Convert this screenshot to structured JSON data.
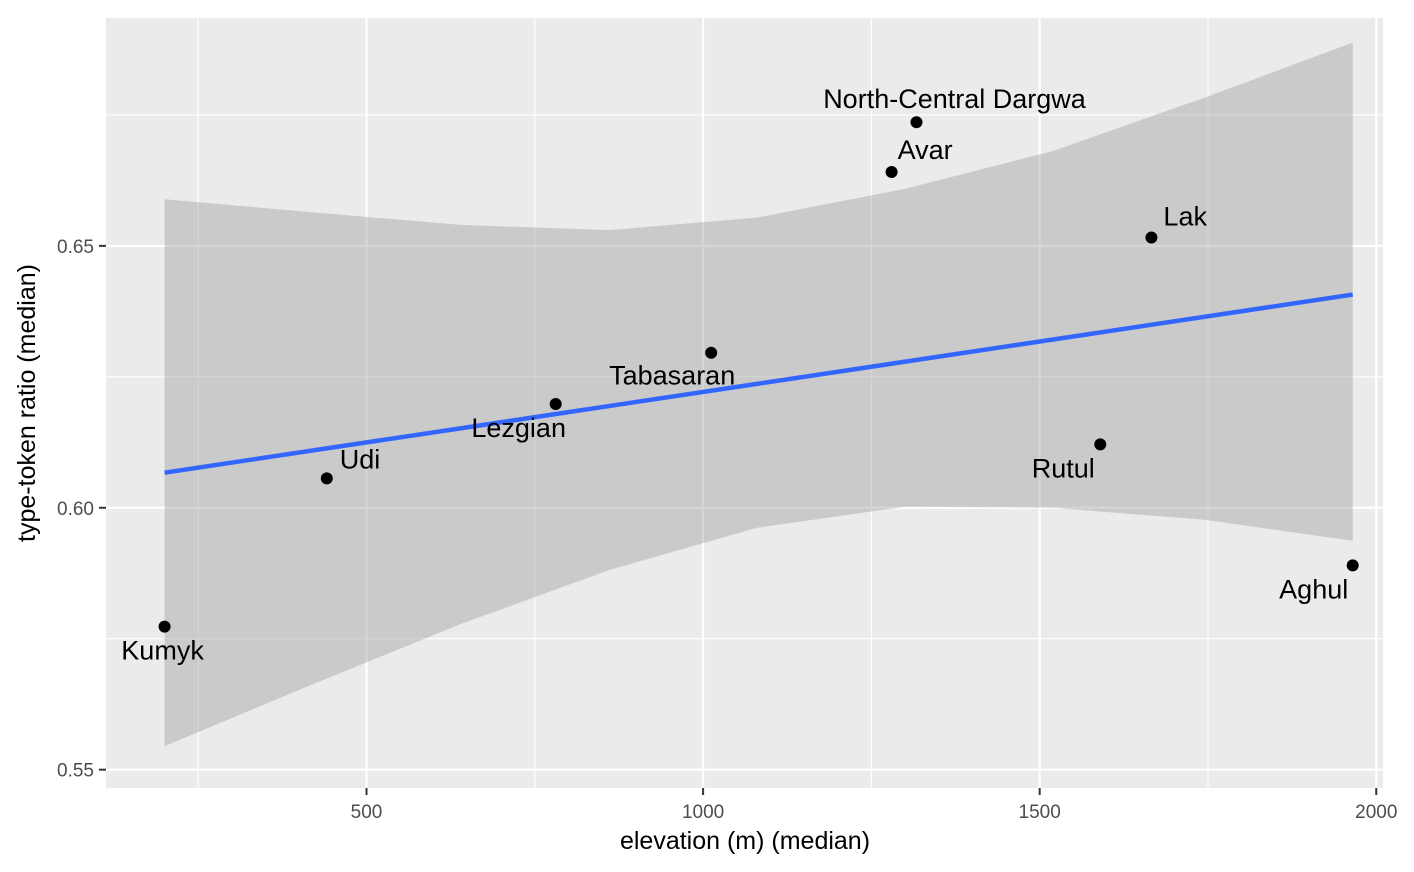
{
  "chart_data": {
    "type": "scatter",
    "title": "",
    "xlabel": "elevation (m) (median)",
    "ylabel": "type-token ratio (median)",
    "xlim": [
      113,
      2010
    ],
    "ylim": [
      0.5465,
      0.6935
    ],
    "x_ticks": [
      500,
      1000,
      1500,
      2000
    ],
    "x_tick_labels": [
      "500",
      "1000",
      "1500",
      "2000"
    ],
    "x_minor_ticks": [
      250,
      750,
      1250,
      1750
    ],
    "y_ticks": [
      0.55,
      0.6,
      0.65
    ],
    "y_tick_labels": [
      "0.55",
      "0.60",
      "0.65"
    ],
    "y_minor_ticks": [
      0.575,
      0.625,
      0.675
    ],
    "grid": true,
    "points": [
      {
        "label": "Kumyk",
        "x": 200,
        "y": 0.5773
      },
      {
        "label": "Udi",
        "x": 441,
        "y": 0.6056
      },
      {
        "label": "Lezgian",
        "x": 781,
        "y": 0.6198
      },
      {
        "label": "Tabasaran",
        "x": 1012,
        "y": 0.6296
      },
      {
        "label": "Avar",
        "x": 1280,
        "y": 0.6641
      },
      {
        "label": "North-Central Dargwa",
        "x": 1317,
        "y": 0.6736
      },
      {
        "label": "Rutul",
        "x": 1590,
        "y": 0.6121
      },
      {
        "label": "Lak",
        "x": 1666,
        "y": 0.6516
      },
      {
        "label": "Aghul",
        "x": 1965,
        "y": 0.589
      }
    ],
    "trend_line": {
      "method": "lm",
      "color": "#3366FF",
      "start": {
        "x": 200,
        "y": 0.6067
      },
      "end": {
        "x": 1965,
        "y": 0.6407
      }
    },
    "confidence_band": {
      "fill": "#999999",
      "x": [
        200,
        420,
        640,
        860,
        1080,
        1300,
        1520,
        1745,
        1965
      ],
      "upper": [
        0.6589,
        0.6564,
        0.654,
        0.653,
        0.6554,
        0.6609,
        0.6681,
        0.6783,
        0.6888
      ],
      "lower": [
        0.5545,
        0.5663,
        0.5778,
        0.5881,
        0.5962,
        0.6002,
        0.6,
        0.5977,
        0.5937
      ]
    },
    "colors": {
      "panel": "#EBEBEB",
      "grid": "#FFFFFF",
      "point": "#000000"
    }
  }
}
